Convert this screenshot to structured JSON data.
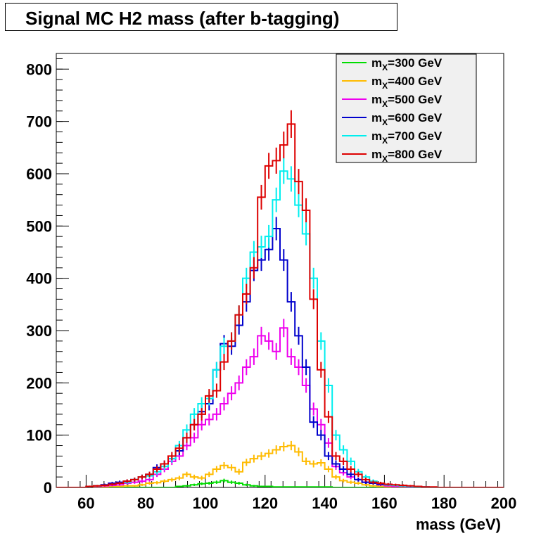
{
  "chart_data": {
    "type": "line",
    "title": "Signal MC H2 mass (after b-tagging)",
    "xlabel": "mass (GeV)",
    "ylabel": "",
    "xlim": [
      50,
      200
    ],
    "ylim": [
      0,
      830
    ],
    "x_ticks": [
      60,
      80,
      100,
      120,
      140,
      160,
      180,
      200
    ],
    "y_ticks": [
      0,
      100,
      200,
      300,
      400,
      500,
      600,
      700,
      800
    ],
    "bin_width": 2.5,
    "bin_start": 50,
    "legend_position": "top-right",
    "grid": false,
    "series": [
      {
        "name": "m_X=300 GeV",
        "legend_main": "m",
        "legend_sub": "X",
        "legend_rest": "=300 GeV",
        "color": "#00dd00",
        "values": [
          0,
          0,
          0,
          0,
          2,
          0,
          0,
          0,
          0,
          0,
          0,
          0,
          0,
          0,
          0,
          0,
          2,
          3,
          5,
          7,
          8,
          10,
          13,
          10,
          8,
          5,
          3,
          2,
          2,
          1,
          1,
          1,
          1,
          1,
          1,
          1,
          1,
          0,
          0,
          0,
          0,
          0,
          0,
          0,
          0,
          0,
          0,
          0,
          0,
          0,
          0,
          0,
          0,
          0,
          0,
          0,
          0,
          0,
          0,
          0
        ]
      },
      {
        "name": "m_X=400 GeV",
        "legend_main": "m",
        "legend_sub": "X",
        "legend_rest": "=400 GeV",
        "color": "#ffbb00",
        "values": [
          0,
          0,
          0,
          0,
          2,
          1,
          1,
          2,
          2,
          3,
          3,
          5,
          8,
          9,
          12,
          15,
          18,
          25,
          20,
          18,
          25,
          35,
          42,
          38,
          30,
          48,
          55,
          60,
          65,
          72,
          78,
          80,
          68,
          50,
          45,
          47,
          35,
          20,
          13,
          10,
          8,
          5,
          3,
          2,
          1,
          1,
          0,
          0,
          0,
          0,
          0,
          0,
          0,
          0,
          0,
          0,
          0,
          0,
          0,
          0
        ]
      },
      {
        "name": "m_X=500 GeV",
        "legend_main": "m",
        "legend_sub": "X",
        "legend_rest": "=500 GeV",
        "color": "#ee00ee",
        "values": [
          0,
          0,
          0,
          0,
          2,
          2,
          3,
          4,
          5,
          8,
          10,
          12,
          15,
          25,
          35,
          50,
          60,
          80,
          95,
          120,
          130,
          140,
          160,
          180,
          200,
          230,
          250,
          290,
          280,
          260,
          305,
          250,
          230,
          195,
          150,
          120,
          85,
          40,
          28,
          20,
          15,
          10,
          8,
          5,
          3,
          2,
          2,
          1,
          1,
          0,
          0,
          0,
          0,
          0,
          0,
          0,
          0,
          0,
          0,
          0
        ]
      },
      {
        "name": "m_X=600 GeV",
        "legend_main": "m",
        "legend_sub": "X",
        "legend_rest": "=600 GeV",
        "color": "#0000cc",
        "values": [
          0,
          0,
          0,
          0,
          2,
          3,
          5,
          8,
          10,
          12,
          15,
          20,
          25,
          38,
          45,
          55,
          70,
          95,
          120,
          145,
          160,
          225,
          275,
          270,
          310,
          355,
          415,
          435,
          455,
          495,
          435,
          355,
          290,
          230,
          125,
          100,
          60,
          45,
          35,
          25,
          15,
          10,
          8,
          6,
          5,
          4,
          3,
          2,
          1,
          1,
          0,
          0,
          0,
          0,
          0,
          0,
          0,
          0,
          0,
          0
        ]
      },
      {
        "name": "m_X=700 GeV",
        "legend_main": "m",
        "legend_sub": "X",
        "legend_rest": "=700 GeV",
        "color": "#00eeee",
        "values": [
          0,
          0,
          0,
          0,
          2,
          3,
          4,
          6,
          8,
          10,
          15,
          20,
          22,
          30,
          40,
          55,
          80,
          110,
          140,
          160,
          170,
          225,
          270,
          280,
          330,
          400,
          450,
          460,
          480,
          550,
          605,
          590,
          540,
          485,
          400,
          280,
          195,
          100,
          72,
          50,
          30,
          20,
          12,
          8,
          5,
          4,
          3,
          2,
          1,
          1,
          0,
          0,
          0,
          0,
          0,
          0,
          0,
          0,
          0,
          0
        ]
      },
      {
        "name": "m_X=800 GeV",
        "legend_main": "m",
        "legend_sub": "X",
        "legend_rest": "=800 GeV",
        "color": "#dd0000",
        "values": [
          0,
          0,
          0,
          0,
          2,
          3,
          4,
          6,
          8,
          12,
          15,
          20,
          25,
          35,
          45,
          60,
          75,
          95,
          120,
          140,
          175,
          185,
          240,
          280,
          330,
          370,
          420,
          555,
          615,
          625,
          655,
          695,
          585,
          530,
          360,
          225,
          135,
          60,
          50,
          35,
          25,
          15,
          10,
          8,
          6,
          5,
          4,
          3,
          2,
          1,
          1,
          0,
          0,
          0,
          0,
          0,
          0,
          0,
          0,
          0
        ]
      }
    ]
  }
}
